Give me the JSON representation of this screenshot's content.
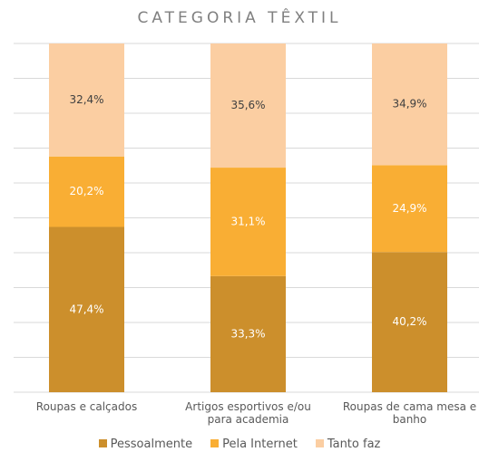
{
  "chart_data": {
    "type": "stacked_bar",
    "title": "CATEGORIA TÊXTIL",
    "categories": [
      "Roupas e calçados",
      "Artigos esportivos e/ou para academia",
      "Roupas de cama mesa e banho"
    ],
    "series": [
      {
        "name": "Pessoalmente",
        "color": "#cc8f2c",
        "values": [
          47.4,
          33.3,
          40.2
        ],
        "value_labels": [
          "47,4%",
          "33,3%",
          "40,2%"
        ]
      },
      {
        "name": "Pela Internet",
        "color": "#f9ae34",
        "values": [
          20.2,
          31.1,
          24.9
        ],
        "value_labels": [
          "20,2%",
          "31,1%",
          "24,9%"
        ]
      },
      {
        "name": "Tanto faz",
        "color": "#fbcea2",
        "values": [
          32.4,
          35.6,
          34.9
        ],
        "value_labels": [
          "32,4%",
          "35,6%",
          "34,9%"
        ]
      }
    ],
    "ylim": [
      0,
      100
    ],
    "yticks": [
      0,
      10,
      20,
      30,
      40,
      50,
      60,
      70,
      80,
      90,
      100
    ],
    "grid": true,
    "legend": "bottom"
  }
}
